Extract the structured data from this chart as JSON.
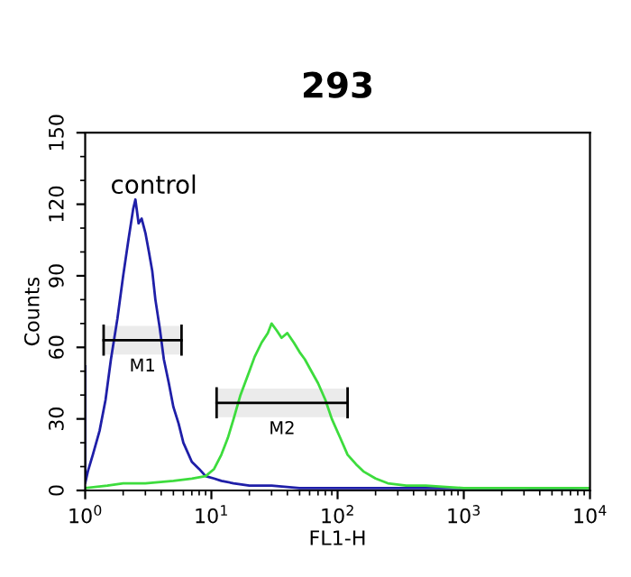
{
  "chart_data": {
    "type": "line",
    "title": "293",
    "xlabel": "FL1-H",
    "ylabel": "Counts",
    "log": "x",
    "xlim": [
      1,
      10000
    ],
    "xticks": [
      {
        "value": 1,
        "label": "10$^{0}$"
      },
      {
        "value": 10,
        "label": "10$^{1}$"
      },
      {
        "value": 100,
        "label": "10$^{2}$"
      },
      {
        "value": 1000,
        "label": "10$^{3}$"
      },
      {
        "value": 10000,
        "label": "10$^{4}$"
      }
    ],
    "ylim": [
      0,
      150
    ],
    "yticks": [
      0,
      30,
      60,
      90,
      120,
      150
    ],
    "grid": false,
    "annotations": [
      "control"
    ],
    "bands": [
      {
        "axis": "x",
        "from": 1.4,
        "to": 5.8,
        "label": "M1",
        "color": "#000000"
      },
      {
        "axis": "x",
        "from": 11,
        "to": 120,
        "label": "M2",
        "color": "#000000"
      }
    ],
    "series": [
      {
        "color": "#1f1fa8",
        "x": [
          1.0,
          1.0,
          1.05,
          1.15,
          1.3,
          1.45,
          1.6,
          1.8,
          2.0,
          2.2,
          2.4,
          2.5,
          2.65,
          2.8,
          3.0,
          3.2,
          3.4,
          3.6,
          3.9,
          4.2,
          4.6,
          5.0,
          5.5,
          6.0,
          7.0,
          8.0,
          9.0,
          10.5,
          12,
          15,
          20,
          30,
          50,
          100,
          200,
          500,
          1000,
          3000,
          10000
        ],
        "values": [
          52,
          3,
          8,
          15,
          25,
          38,
          55,
          72,
          90,
          105,
          118,
          122,
          112,
          114,
          108,
          100,
          92,
          80,
          68,
          55,
          45,
          35,
          28,
          20,
          12,
          9,
          6,
          5,
          4,
          3,
          2,
          2,
          1,
          1,
          1,
          1,
          1,
          1,
          0
        ]
      },
      {
        "color": "#3ddc3d",
        "x": [
          1.0,
          1.5,
          2,
          3,
          5,
          7,
          9,
          10.5,
          12,
          13.5,
          15,
          17,
          20,
          22,
          25,
          28,
          30,
          33,
          36,
          40,
          45,
          50,
          55,
          62,
          70,
          80,
          90,
          105,
          120,
          140,
          160,
          200,
          250,
          350,
          500,
          1000,
          3000,
          10000
        ],
        "values": [
          1,
          2,
          3,
          3,
          4,
          5,
          6,
          9,
          15,
          22,
          30,
          40,
          50,
          56,
          62,
          66,
          70,
          67,
          64,
          66,
          62,
          58,
          55,
          50,
          45,
          38,
          30,
          22,
          15,
          11,
          8,
          5,
          3,
          2,
          2,
          1,
          1,
          1
        ]
      }
    ]
  }
}
